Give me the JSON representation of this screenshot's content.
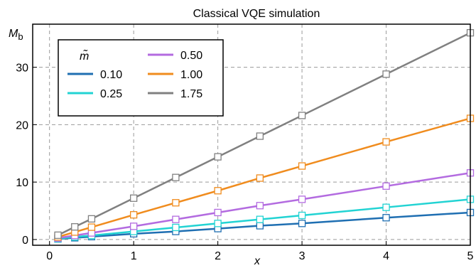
{
  "chart_data": {
    "type": "line",
    "title": "Classical VQE simulation",
    "xlabel": "x",
    "ylabel_main": "M",
    "ylabel_sub": "b",
    "xlim": [
      -0.2,
      5.0
    ],
    "ylim": [
      -1.0,
      37.5
    ],
    "xticks": [
      0,
      1,
      2,
      3,
      4,
      5
    ],
    "yticks": [
      0,
      10,
      20,
      30
    ],
    "grid": true,
    "legend_title": "m̃",
    "legend_position": "top-left",
    "x": [
      0.1,
      0.3,
      0.5,
      1.0,
      1.5,
      2.0,
      2.5,
      3.0,
      4.0,
      5.0
    ],
    "series": [
      {
        "name": "0.10",
        "color": "#1f6fb2",
        "values": [
          0.1,
          0.3,
          0.5,
          1.0,
          1.4,
          1.9,
          2.4,
          2.8,
          3.8,
          4.7
        ]
      },
      {
        "name": "0.25",
        "color": "#22d3d3",
        "values": [
          0.15,
          0.45,
          0.7,
          1.4,
          2.1,
          2.8,
          3.5,
          4.2,
          5.6,
          7.0
        ]
      },
      {
        "name": "0.50",
        "color": "#b36be0",
        "values": [
          0.25,
          0.7,
          1.15,
          2.3,
          3.5,
          4.7,
          5.9,
          7.0,
          9.3,
          11.6
        ]
      },
      {
        "name": "1.00",
        "color": "#f08c1e",
        "values": [
          0.45,
          1.3,
          2.15,
          4.3,
          6.4,
          8.5,
          10.7,
          12.8,
          17.0,
          21.1
        ]
      },
      {
        "name": "1.75",
        "color": "#808080",
        "values": [
          0.75,
          2.2,
          3.6,
          7.2,
          10.8,
          14.4,
          18.0,
          21.6,
          28.8,
          36.0
        ]
      }
    ]
  }
}
